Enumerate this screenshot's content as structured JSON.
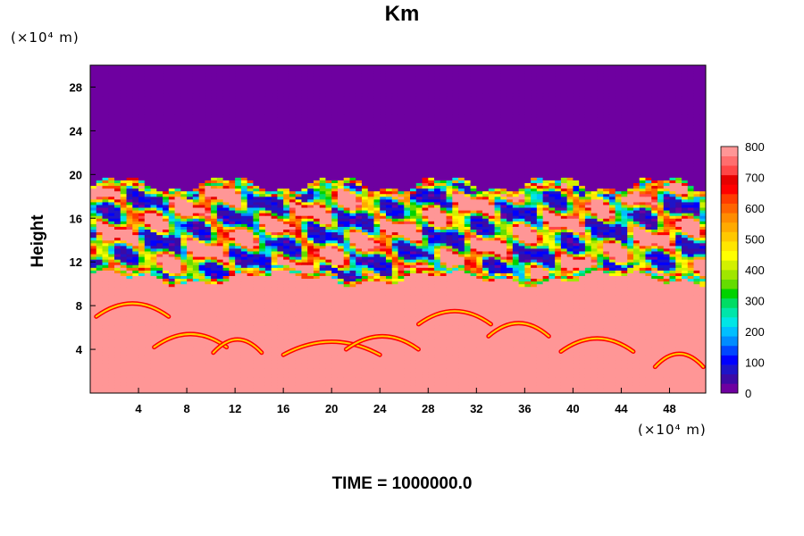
{
  "chart_data": {
    "type": "heatmap",
    "title": "Km",
    "ylabel": "Height",
    "y_unit": "(×10⁴ m)",
    "x_unit": "(×10⁴ m)",
    "footer": "TIME = 1000000.0",
    "xlim": [
      0,
      51
    ],
    "ylim": [
      0,
      30
    ],
    "x_ticks": [
      4,
      8,
      12,
      16,
      20,
      24,
      28,
      32,
      36,
      40,
      44,
      48
    ],
    "y_ticks": [
      4,
      8,
      12,
      16,
      20,
      24,
      28
    ],
    "colorbar": {
      "range": [
        0,
        800
      ],
      "step": 25,
      "tick_values": [
        0,
        100,
        200,
        300,
        400,
        500,
        600,
        700,
        800
      ],
      "colors": [
        "#6e00a0",
        "#3c0aa6",
        "#1e14c8",
        "#0000ff",
        "#0046ff",
        "#008cff",
        "#00bfff",
        "#00e6e6",
        "#00e6aa",
        "#00dc64",
        "#00d200",
        "#64dc00",
        "#a0e600",
        "#d2f000",
        "#ffff00",
        "#ffe600",
        "#ffc800",
        "#ffaa00",
        "#ff8c00",
        "#ff6400",
        "#ff3c00",
        "#ff0000",
        "#e60000",
        "#ff4646",
        "#ff6e6e",
        "#ff9696"
      ]
    },
    "regions": [
      {
        "name": "upper",
        "y_range": [
          19,
          30
        ],
        "value": 0
      },
      {
        "name": "turbulent-band",
        "y_range": [
          10,
          19
        ],
        "value": "mixed 0-800"
      },
      {
        "name": "lower",
        "y_range": [
          0,
          10
        ],
        "value": 800
      }
    ]
  },
  "labels": {
    "title": "Km",
    "ylabel": "Height",
    "y_unit": "(×10⁴ m)",
    "x_unit": "(×10⁴ m)",
    "footer": "TIME = 1000000.0"
  }
}
